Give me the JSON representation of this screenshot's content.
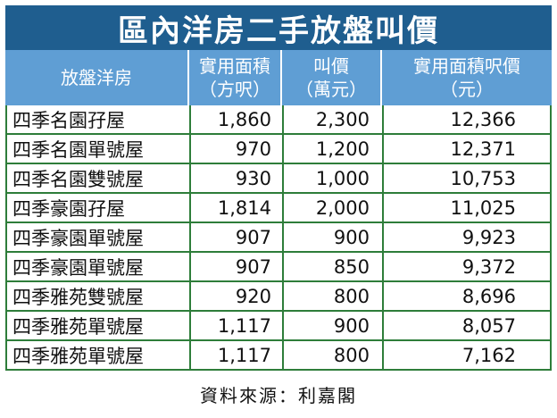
{
  "title": "區內洋房二手放盤叫價",
  "headers": [
    {
      "line1": "放盤洋房",
      "line2": ""
    },
    {
      "line1": "實用面積",
      "line2": "（方呎）"
    },
    {
      "line1": "叫價",
      "line2": "（萬元）"
    },
    {
      "line1": "實用面積呎價",
      "line2": "（元）"
    }
  ],
  "rows": [
    {
      "name": "四季名園孖屋",
      "area": "1,860",
      "price": "2,300",
      "psf": "12,366"
    },
    {
      "name": "四季名園單號屋",
      "area": "970",
      "price": "1,200",
      "psf": "12,371"
    },
    {
      "name": "四季名園雙號屋",
      "area": "930",
      "price": "1,000",
      "psf": "10,753"
    },
    {
      "name": "四季豪園孖屋",
      "area": "1,814",
      "price": "2,000",
      "psf": "11,025"
    },
    {
      "name": "四季豪園單號屋",
      "area": "907",
      "price": "900",
      "psf": "9,923"
    },
    {
      "name": "四季豪園單號屋",
      "area": "907",
      "price": "850",
      "psf": "9,372"
    },
    {
      "name": "四季雅苑雙號屋",
      "area": "920",
      "price": "800",
      "psf": "8,696"
    },
    {
      "name": "四季雅苑單號屋",
      "area": "1,117",
      "price": "900",
      "psf": "8,057"
    },
    {
      "name": "四季雅苑單號屋",
      "area": "1,117",
      "price": "800",
      "psf": "7,162"
    }
  ],
  "source": "資料來源：利嘉閣",
  "colors": {
    "title_bg": "#1f5e8f",
    "header_bg": "#5f9ed4",
    "grid": "#2e7d3a"
  }
}
